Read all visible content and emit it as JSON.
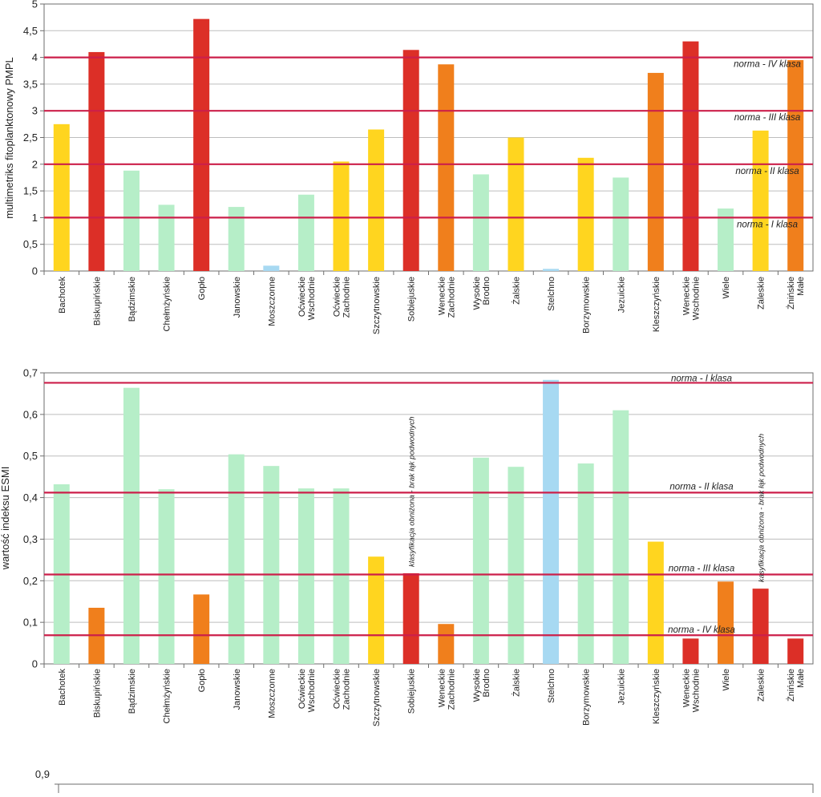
{
  "colors": {
    "green": "#b6eec8",
    "yellow": "#ffd51f",
    "orange": "#f07f1c",
    "red": "#dc2f27",
    "blue": "#a7d9f2",
    "norm_line": "#cc1f4a",
    "grid": "#bdbdbd",
    "frame": "#6e6e6e"
  },
  "chart_data": [
    {
      "type": "bar",
      "ylabel": "multimetriks fitoplanktonowy PMPL",
      "ylim": [
        0,
        5
      ],
      "yticks": [
        "0",
        "0,5",
        "1",
        "1,5",
        "2",
        "2,5",
        "3",
        "3,5",
        "4",
        "4,5",
        "5"
      ],
      "grid": true,
      "categories": [
        "Bachotek",
        "Biskupińskie",
        "Bądzimskie",
        "Chełmżyńskie",
        "Gopło",
        "Janowskie",
        "Moszczonne",
        "Oćwieckie Wschodnie",
        "Oćwieckie Zachodnie",
        "Szczytnowskie",
        "Sobiejuskie",
        "Weneckie Zachodnie",
        "Wysokie Brodno",
        "Żalskie",
        "Stelchno",
        "Borzymowskie",
        "Jezuickie",
        "Kleszczyńskie",
        "Weneckie Wschodnie",
        "Wiele",
        "Zaleskie",
        "Żnińskie Małe"
      ],
      "values": [
        2.75,
        4.1,
        1.88,
        1.24,
        4.72,
        1.2,
        0.1,
        1.43,
        2.05,
        2.65,
        4.14,
        3.87,
        1.81,
        2.5,
        0.04,
        2.12,
        1.75,
        3.71,
        4.3,
        1.17,
        2.63,
        3.95
      ],
      "bar_colors": [
        "yellow",
        "red",
        "green",
        "green",
        "red",
        "green",
        "blue",
        "green",
        "yellow",
        "yellow",
        "red",
        "orange",
        "green",
        "yellow",
        "blue",
        "yellow",
        "green",
        "orange",
        "red",
        "green",
        "yellow",
        "orange"
      ],
      "norms": [
        {
          "value": 4,
          "label": "norma - IV klasa"
        },
        {
          "value": 3,
          "label": "norma - III klasa"
        },
        {
          "value": 2,
          "label": "norma - II klasa"
        },
        {
          "value": 1,
          "label": "norma - I klasa"
        }
      ]
    },
    {
      "type": "bar",
      "ylabel": "wartość indeksu ESMI",
      "ylim": [
        0,
        0.7
      ],
      "yticks": [
        "0",
        "0,1",
        "0,2",
        "0,3",
        "0,4",
        "0,5",
        "0,6",
        "0,7"
      ],
      "grid": true,
      "categories": [
        "Bachotek",
        "Biskupińskie",
        "Bądzimskie",
        "Chełmżyńskie",
        "Gopło",
        "Janowskie",
        "Moszczonne",
        "Oćwieckie Wschodnie",
        "Oćwieckie Zachodnie",
        "Szczytnowskie",
        "Sobiejuskie",
        "Weneckie Zachodnie",
        "Wysokie Brodno",
        "Żalskie",
        "Stelchno",
        "Borzymowskie",
        "Jezuickie",
        "Kleszczyńskie",
        "Weneckie Wschodnie",
        "Wiele",
        "Zaleskie",
        "Żnińskie Małe"
      ],
      "values": [
        0.432,
        0.135,
        0.664,
        0.42,
        0.167,
        0.504,
        0.476,
        0.422,
        0.422,
        0.258,
        0.218,
        0.096,
        0.496,
        0.474,
        0.683,
        0.482,
        0.61,
        0.294,
        0.061,
        0.198,
        0.181,
        0.061
      ],
      "bar_colors": [
        "green",
        "orange",
        "green",
        "green",
        "orange",
        "green",
        "green",
        "green",
        "green",
        "yellow",
        "red",
        "orange",
        "green",
        "green",
        "blue",
        "green",
        "green",
        "yellow",
        "red",
        "orange",
        "red",
        "red"
      ],
      "norms": [
        {
          "value": 0.676,
          "label": "norma - I klasa"
        },
        {
          "value": 0.412,
          "label": "norma - II klasa"
        },
        {
          "value": 0.215,
          "label": "norma - III klasa"
        },
        {
          "value": 0.069,
          "label": "norma - IV klasa"
        }
      ],
      "annotations": [
        {
          "category": "Sobiejuskie",
          "text": "klasyfikacja obniżona - brak łąk podwodnych"
        },
        {
          "category": "Zaleskie",
          "text": "kasyfikacja obniżona - brak łąk podwodnych"
        }
      ]
    },
    {
      "type": "bar",
      "yticks": [
        "0,9"
      ],
      "categories": [],
      "values": []
    }
  ]
}
